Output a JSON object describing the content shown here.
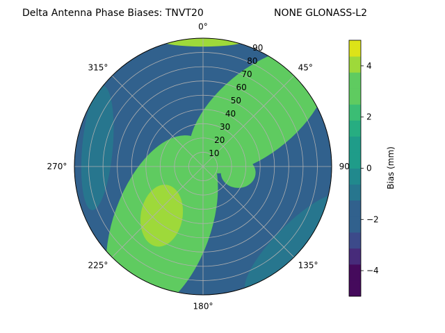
{
  "chart_data": {
    "type": "heatmap",
    "projection": "polar",
    "title_left": "Delta Antenna Phase Biases: TNVT20",
    "title_right": "NONE GLONASS-L2",
    "azimuth_ticks": [
      "0°",
      "45°",
      "90°",
      "135°",
      "180°",
      "225°",
      "270°",
      "315°"
    ],
    "radial_ticks": [
      "10",
      "20",
      "30",
      "40",
      "50",
      "60",
      "70",
      "80",
      "90"
    ],
    "radial_range": [
      0,
      90
    ],
    "grid": true,
    "colorbar": {
      "label": "Bias (mm)",
      "range": [
        -5,
        5
      ],
      "ticks": [
        "4",
        "2",
        "0",
        "−2",
        "−4"
      ],
      "levels": [
        -5,
        -4.375,
        -3.75,
        -3.125,
        -2.5,
        -1.875,
        -1.25,
        -0.625,
        0,
        0.625,
        1.25,
        1.875,
        2.5,
        3.125,
        3.75,
        4.375,
        5
      ],
      "colors": [
        "#450a5c",
        "#472b7a",
        "#3c4a8a",
        "#31618d",
        "#27768e",
        "#21898d",
        "#1f9c89",
        "#27ad81",
        "#3bbd74",
        "#5fcb60",
        "#9ed93a",
        "#dde318"
      ]
    },
    "regions": [
      {
        "name": "background",
        "bias": -0.6
      },
      {
        "name": "upper-right-band",
        "az": 45,
        "zen": 55,
        "bias": 1.0
      },
      {
        "name": "top-rim",
        "az": 0,
        "zen": 88,
        "bias": 1.6
      },
      {
        "name": "lower-left-band",
        "az": 215,
        "zen": 50,
        "bias": 0.9
      },
      {
        "name": "lower-left-hotspot",
        "az": 220,
        "zen": 45,
        "bias": 1.6
      },
      {
        "name": "left-low-patch",
        "az": 280,
        "zen": 75,
        "bias": -2.2
      },
      {
        "name": "lower-right-low",
        "az": 130,
        "zen": 85,
        "bias": -2.4
      },
      {
        "name": "near-zenith-right",
        "az": 100,
        "zen": 25,
        "bias": 0.9
      }
    ]
  }
}
